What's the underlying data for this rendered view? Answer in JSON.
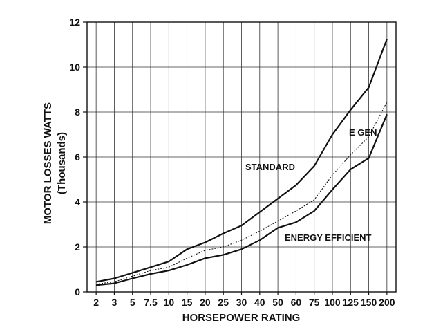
{
  "chart_data": {
    "type": "line",
    "title": "",
    "xlabel": "HORSEPOWER RATING",
    "ylabel": "MOTOR LOSSES WATTS",
    "ylabel_sub": "(Thousands)",
    "categories": [
      "2",
      "3",
      "5",
      "7.5",
      "10",
      "15",
      "20",
      "25",
      "30",
      "40",
      "50",
      "60",
      "75",
      "100",
      "125",
      "150",
      "200"
    ],
    "ylim": [
      0,
      12
    ],
    "yticks": [
      0,
      2,
      4,
      6,
      8,
      10,
      12
    ],
    "grid": true,
    "series": [
      {
        "name": "STANDARD",
        "style": "solid",
        "values": [
          0.45,
          0.6,
          0.85,
          1.1,
          1.35,
          1.9,
          2.2,
          2.6,
          2.95,
          3.55,
          4.15,
          4.75,
          5.6,
          7.0,
          8.1,
          9.1,
          11.25
        ]
      },
      {
        "name": "E GEN.",
        "style": "dotted",
        "values": [
          0.35,
          0.45,
          0.7,
          0.95,
          1.1,
          1.5,
          1.85,
          2.0,
          2.3,
          2.7,
          3.15,
          3.6,
          4.1,
          5.2,
          6.1,
          6.9,
          8.45
        ]
      },
      {
        "name": "ENERGY EFFICIENT",
        "style": "solid",
        "values": [
          0.3,
          0.38,
          0.6,
          0.8,
          0.95,
          1.2,
          1.5,
          1.65,
          1.9,
          2.3,
          2.85,
          3.1,
          3.6,
          4.55,
          5.45,
          5.95,
          7.9
        ]
      }
    ]
  }
}
